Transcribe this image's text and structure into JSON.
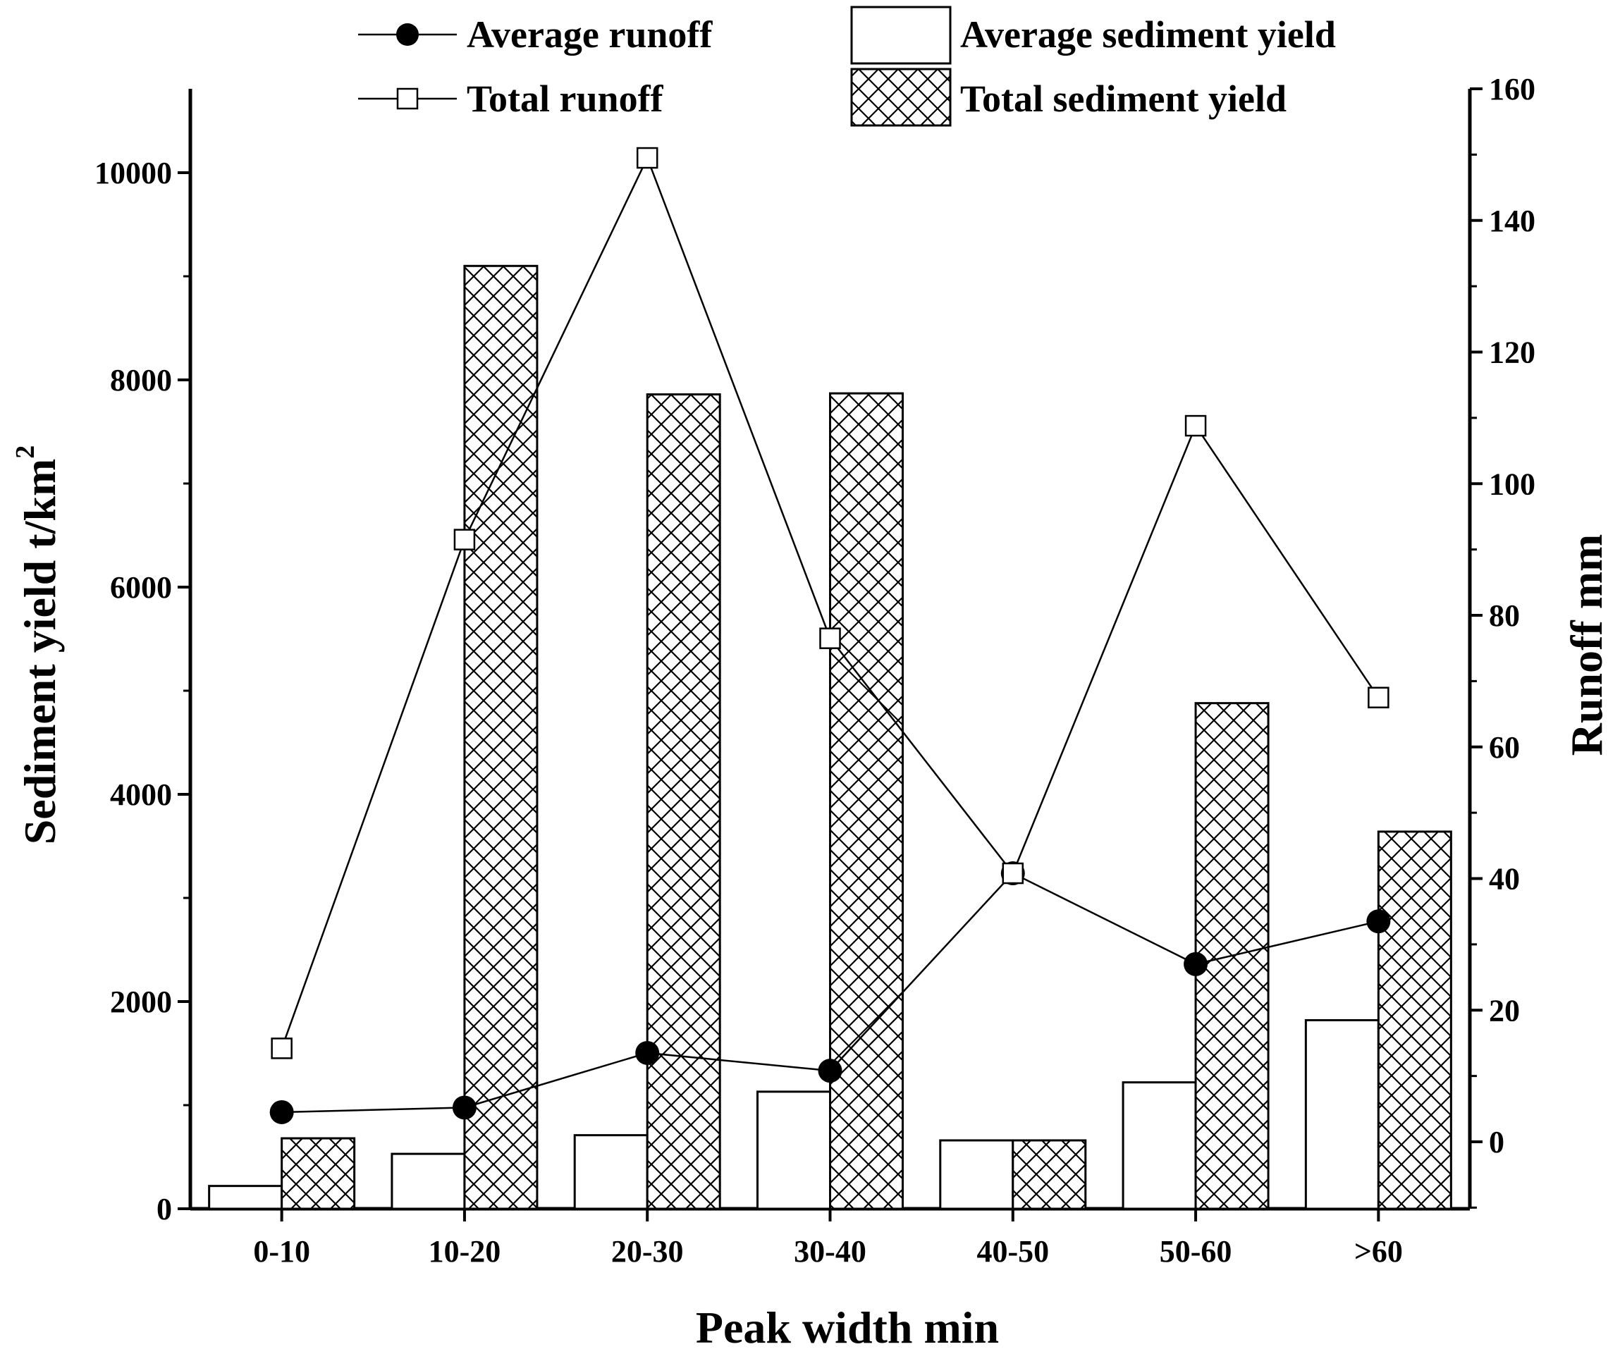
{
  "colors": {
    "ink": "#000000",
    "background": "#ffffff"
  },
  "chart_data": {
    "type": "bar",
    "title": "",
    "xlabel": "Peak width min",
    "ylabel": "Sediment yield t/km",
    "ylabel_superscript": "2",
    "y2label": "Runoff mm",
    "categories": [
      "0-10",
      "10-20",
      "20-30",
      "30-40",
      "40-50",
      "50-60",
      ">60"
    ],
    "ylim": [
      0,
      11000
    ],
    "yticks": [
      0,
      2000,
      4000,
      6000,
      8000,
      10000
    ],
    "y2lim": [
      -10,
      160
    ],
    "y2ticks": [
      0,
      20,
      40,
      60,
      80,
      100,
      120,
      140,
      160
    ],
    "grid": false,
    "legend_position": "top",
    "bar_series": [
      {
        "name": "Average sediment yield",
        "axis": "left",
        "pattern": "none",
        "values": [
          220,
          530,
          710,
          1130,
          660,
          1220,
          1820
        ]
      },
      {
        "name": "Total sediment yield",
        "axis": "left",
        "pattern": "crosshatch",
        "values": [
          680,
          9100,
          7860,
          7870,
          660,
          4880,
          3640
        ]
      }
    ],
    "line_series": [
      {
        "name": "Average runoff",
        "axis": "right",
        "marker": "filled-circle",
        "values": [
          4.5,
          5.2,
          13.5,
          10.8,
          40.8,
          27.0,
          33.5
        ]
      },
      {
        "name": "Total runoff",
        "axis": "right",
        "marker": "open-square",
        "values": [
          14.2,
          91.5,
          149.5,
          76.5,
          40.8,
          108.8,
          67.5
        ]
      }
    ]
  }
}
